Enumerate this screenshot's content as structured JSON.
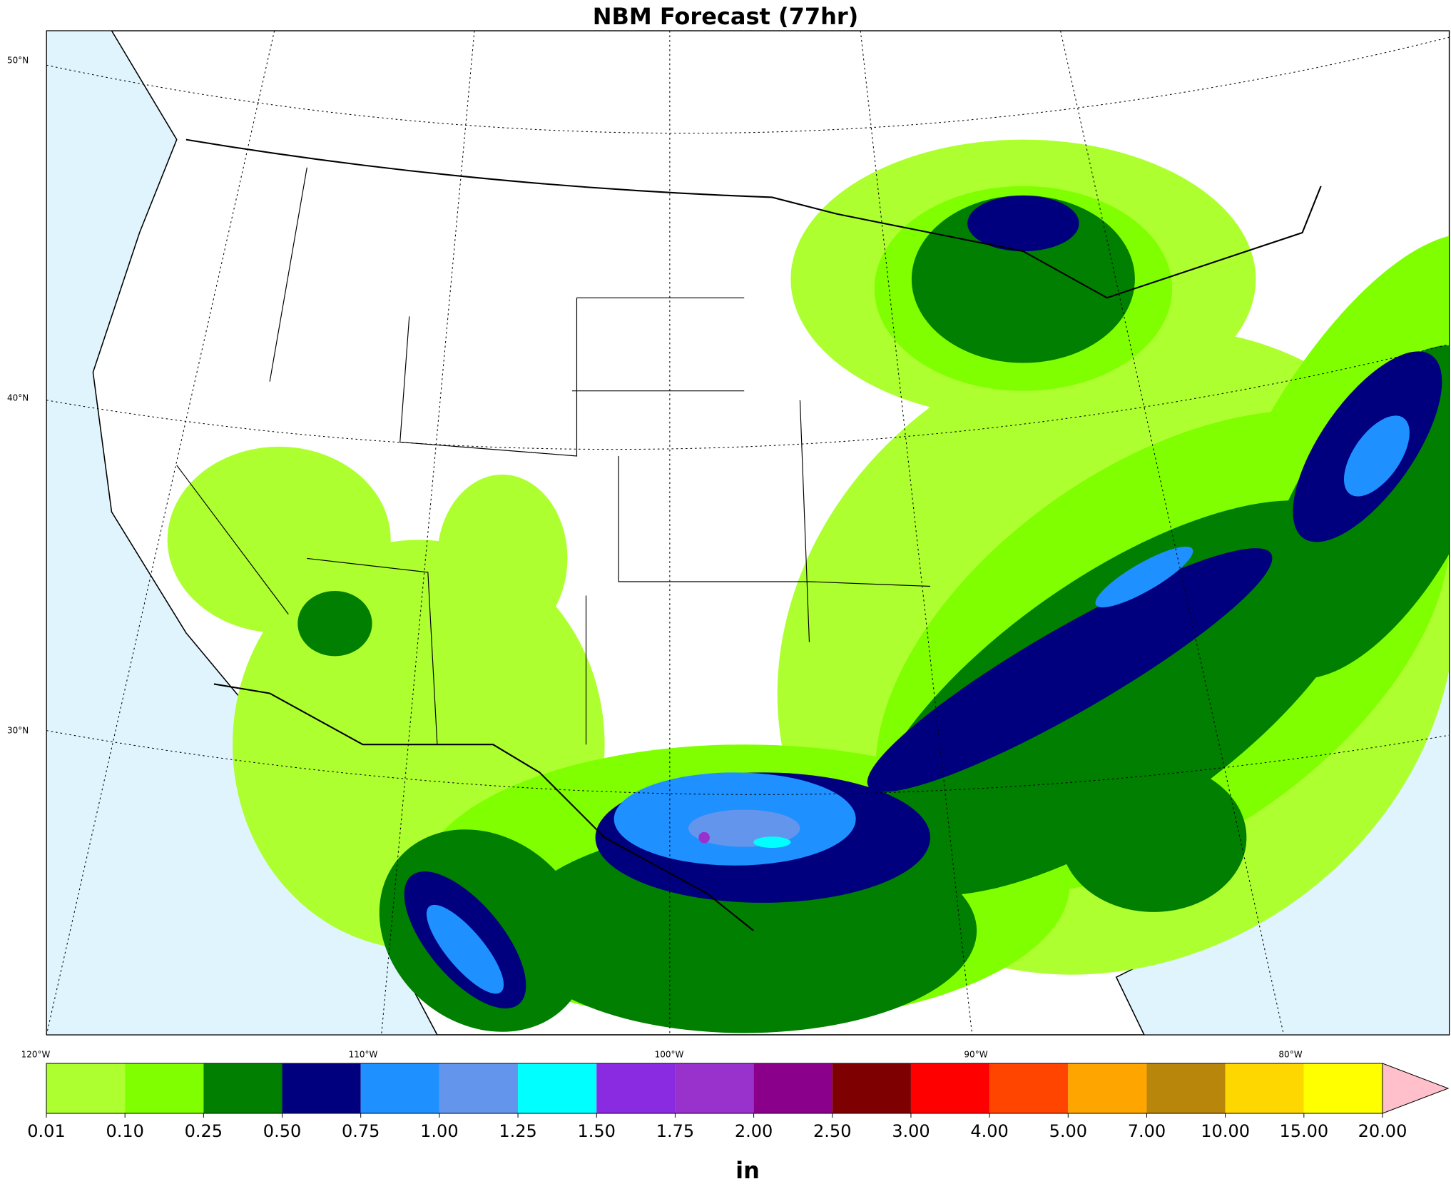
{
  "title": "NBM Forecast (77hr)",
  "map": {
    "lat_labels": [
      "50°N",
      "40°N",
      "30°N"
    ],
    "lon_labels": [
      "120°W",
      "110°W",
      "100°W",
      "90°W",
      "80°W"
    ]
  },
  "colorbar": {
    "label": "in",
    "ticks": [
      0.01,
      {
        "value": 0.1,
        "label": "0.10"
      },
      0.25,
      {
        "value": 0.5,
        "label": "0.50"
      },
      0.75,
      {
        "value": 1,
        "label": "1.00"
      },
      1.25,
      {
        "value": 1.5,
        "label": "1.50"
      },
      1.75,
      {
        "value": 2,
        "label": "2.00"
      },
      {
        "value": 2.5,
        "label": "2.50"
      },
      {
        "value": 3,
        "label": "3.00"
      },
      {
        "value": 4,
        "label": "4.00"
      },
      {
        "value": 5,
        "label": "5.00"
      },
      {
        "value": 7,
        "label": "7.00"
      },
      {
        "value": 10,
        "label": "10.00"
      },
      {
        "value": 15,
        "label": "15.00"
      },
      {
        "value": 20,
        "label": "20.00"
      }
    ],
    "colors": [
      "#adff2f",
      "#7fff00",
      "#007f00",
      "#00007f",
      "#1e90ff",
      "#6495ed",
      "#00ffff",
      "#8a2be2",
      "#9932cc",
      "#8b008b",
      "#7f0000",
      "#ff0000",
      "#ff4500",
      "#ffa500",
      "#b8860b",
      "#ffd700",
      "#ffff00"
    ],
    "extend_color": "#ffc0cb"
  }
}
